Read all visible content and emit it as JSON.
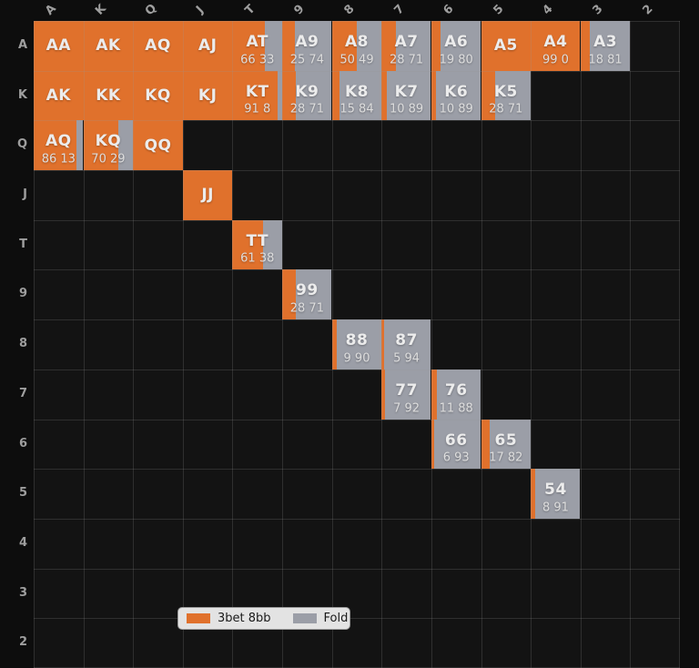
{
  "colors": {
    "bet3_orange": "#e0712c",
    "fold_gray": "#9b9ea7",
    "background": "#0d0d0d",
    "grid_background": "#131313",
    "axis_label_gray": "#9e9e9e",
    "legend_background": "#e3e3e3"
  },
  "chart_data": {
    "type": "heatmap",
    "description": "13x13 poker hand range grid; each cell split horizontally: orange fraction = 3bet 8bb %, gray fraction = Fold %",
    "x_labels": [
      "A",
      "K",
      "Q",
      "J",
      "T",
      "9",
      "8",
      "7",
      "6",
      "5",
      "4",
      "3",
      "2"
    ],
    "y_labels": [
      "A",
      "K",
      "Q",
      "J",
      "T",
      "9",
      "8",
      "7",
      "6",
      "5",
      "4",
      "3",
      "2"
    ],
    "legend": {
      "items": [
        {
          "label": "3bet 8bb",
          "color": "#e0712c"
        },
        {
          "label": "Fold",
          "color": "#9b9ea7"
        }
      ],
      "position": "bottom-center"
    },
    "cells": [
      {
        "hand": "AA",
        "row": "A",
        "col": "A",
        "bet3": 100,
        "fold": 0,
        "show_values": false
      },
      {
        "hand": "AK",
        "row": "A",
        "col": "K",
        "bet3": 100,
        "fold": 0,
        "show_values": false
      },
      {
        "hand": "AQ",
        "row": "A",
        "col": "Q",
        "bet3": 100,
        "fold": 0,
        "show_values": false
      },
      {
        "hand": "AJ",
        "row": "A",
        "col": "J",
        "bet3": 100,
        "fold": 0,
        "show_values": false
      },
      {
        "hand": "AT",
        "row": "A",
        "col": "T",
        "bet3": 66,
        "fold": 33,
        "show_values": true
      },
      {
        "hand": "A9",
        "row": "A",
        "col": "9",
        "bet3": 25,
        "fold": 74,
        "show_values": true
      },
      {
        "hand": "A8",
        "row": "A",
        "col": "8",
        "bet3": 50,
        "fold": 49,
        "show_values": true
      },
      {
        "hand": "A7",
        "row": "A",
        "col": "7",
        "bet3": 28,
        "fold": 71,
        "show_values": true
      },
      {
        "hand": "A6",
        "row": "A",
        "col": "6",
        "bet3": 19,
        "fold": 80,
        "show_values": true
      },
      {
        "hand": "A5",
        "row": "A",
        "col": "5",
        "bet3": 100,
        "fold": 0,
        "show_values": false
      },
      {
        "hand": "A4",
        "row": "A",
        "col": "4",
        "bet3": 99,
        "fold": 0,
        "show_values": true
      },
      {
        "hand": "A3",
        "row": "A",
        "col": "3",
        "bet3": 18,
        "fold": 81,
        "show_values": true
      },
      {
        "hand": "AK",
        "row": "K",
        "col": "A",
        "bet3": 100,
        "fold": 0,
        "show_values": false
      },
      {
        "hand": "KK",
        "row": "K",
        "col": "K",
        "bet3": 100,
        "fold": 0,
        "show_values": false
      },
      {
        "hand": "KQ",
        "row": "K",
        "col": "Q",
        "bet3": 100,
        "fold": 0,
        "show_values": false
      },
      {
        "hand": "KJ",
        "row": "K",
        "col": "J",
        "bet3": 100,
        "fold": 0,
        "show_values": false
      },
      {
        "hand": "KT",
        "row": "K",
        "col": "T",
        "bet3": 91,
        "fold": 8,
        "show_values": true
      },
      {
        "hand": "K9",
        "row": "K",
        "col": "9",
        "bet3": 28,
        "fold": 71,
        "show_values": true
      },
      {
        "hand": "K8",
        "row": "K",
        "col": "8",
        "bet3": 15,
        "fold": 84,
        "show_values": true
      },
      {
        "hand": "K7",
        "row": "K",
        "col": "7",
        "bet3": 10,
        "fold": 89,
        "show_values": true
      },
      {
        "hand": "K6",
        "row": "K",
        "col": "6",
        "bet3": 10,
        "fold": 89,
        "show_values": true
      },
      {
        "hand": "K5",
        "row": "K",
        "col": "5",
        "bet3": 28,
        "fold": 71,
        "show_values": true
      },
      {
        "hand": "AQ",
        "row": "Q",
        "col": "A",
        "bet3": 86,
        "fold": 13,
        "show_values": true
      },
      {
        "hand": "KQ",
        "row": "Q",
        "col": "K",
        "bet3": 70,
        "fold": 29,
        "show_values": true
      },
      {
        "hand": "QQ",
        "row": "Q",
        "col": "Q",
        "bet3": 100,
        "fold": 0,
        "show_values": false
      },
      {
        "hand": "JJ",
        "row": "J",
        "col": "J",
        "bet3": 100,
        "fold": 0,
        "show_values": false
      },
      {
        "hand": "TT",
        "row": "T",
        "col": "T",
        "bet3": 61,
        "fold": 38,
        "show_values": true
      },
      {
        "hand": "99",
        "row": "9",
        "col": "9",
        "bet3": 28,
        "fold": 71,
        "show_values": true
      },
      {
        "hand": "88",
        "row": "8",
        "col": "8",
        "bet3": 9,
        "fold": 90,
        "show_values": true
      },
      {
        "hand": "87",
        "row": "8",
        "col": "7",
        "bet3": 5,
        "fold": 94,
        "show_values": true
      },
      {
        "hand": "77",
        "row": "7",
        "col": "7",
        "bet3": 7,
        "fold": 92,
        "show_values": true
      },
      {
        "hand": "76",
        "row": "7",
        "col": "6",
        "bet3": 11,
        "fold": 88,
        "show_values": true
      },
      {
        "hand": "66",
        "row": "6",
        "col": "6",
        "bet3": 6,
        "fold": 93,
        "show_values": true
      },
      {
        "hand": "65",
        "row": "6",
        "col": "5",
        "bet3": 17,
        "fold": 82,
        "show_values": true
      },
      {
        "hand": "54",
        "row": "5",
        "col": "4",
        "bet3": 8,
        "fold": 91,
        "show_values": true
      }
    ]
  }
}
